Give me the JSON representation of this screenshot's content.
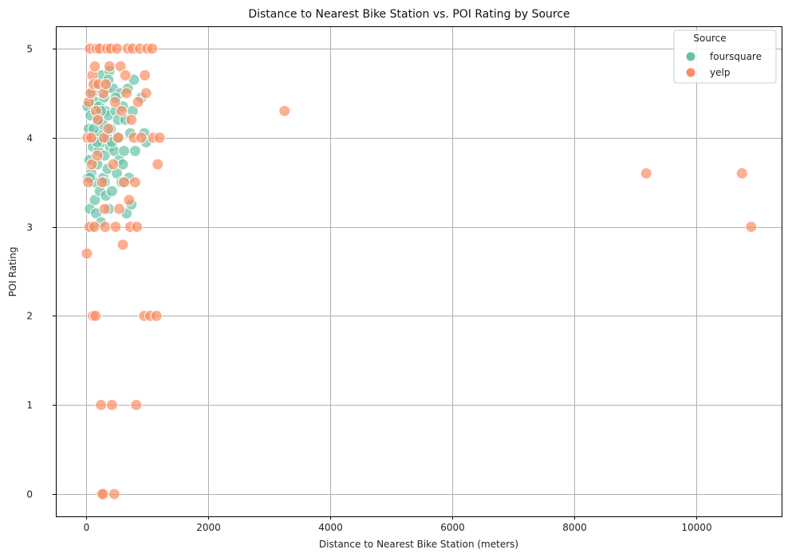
{
  "chart_data": {
    "type": "scatter",
    "title": "Distance to Nearest Bike Station vs. POI Rating by Source",
    "xlabel": "Distance to Nearest Bike Station (meters)",
    "ylabel": "POI Rating",
    "xlim": [
      -500,
      11400
    ],
    "ylim": [
      -0.25,
      5.25
    ],
    "xticks": [
      0,
      2000,
      4000,
      6000,
      8000,
      10000
    ],
    "yticks": [
      0,
      1,
      2,
      3,
      4,
      5
    ],
    "grid": true,
    "legend": {
      "title": "Source",
      "placement": "top-right"
    },
    "series": [
      {
        "name": "foursquare",
        "color": "#66c2a5",
        "points": [
          [
            20,
            4.35
          ],
          [
            30,
            3.55
          ],
          [
            40,
            4.1
          ],
          [
            50,
            3.75
          ],
          [
            60,
            3.2
          ],
          [
            70,
            4.25
          ],
          [
            80,
            3.6
          ],
          [
            90,
            3.0
          ],
          [
            100,
            4.5
          ],
          [
            110,
            3.9
          ],
          [
            120,
            4.0
          ],
          [
            130,
            3.5
          ],
          [
            140,
            3.3
          ],
          [
            150,
            4.4
          ],
          [
            160,
            3.15
          ],
          [
            170,
            4.6
          ],
          [
            180,
            3.7
          ],
          [
            190,
            4.2
          ],
          [
            200,
            3.85
          ],
          [
            210,
            4.35
          ],
          [
            220,
            3.4
          ],
          [
            230,
            4.05
          ],
          [
            240,
            3.05
          ],
          [
            250,
            4.7
          ],
          [
            260,
            3.95
          ],
          [
            270,
            4.15
          ],
          [
            280,
            3.55
          ],
          [
            290,
            4.45
          ],
          [
            300,
            3.8
          ],
          [
            310,
            4.3
          ],
          [
            320,
            3.35
          ],
          [
            330,
            4.55
          ],
          [
            340,
            4.0
          ],
          [
            350,
            3.65
          ],
          [
            360,
            4.25
          ],
          [
            370,
            3.2
          ],
          [
            380,
            4.75
          ],
          [
            390,
            3.9
          ],
          [
            400,
            4.1
          ],
          [
            420,
            3.4
          ],
          [
            440,
            4.55
          ],
          [
            460,
            3.85
          ],
          [
            480,
            4.3
          ],
          [
            500,
            3.6
          ],
          [
            520,
            4.2
          ],
          [
            540,
            3.75
          ],
          [
            560,
            4.5
          ],
          [
            580,
            3.5
          ],
          [
            600,
            4.35
          ],
          [
            620,
            3.85
          ],
          [
            640,
            4.2
          ],
          [
            660,
            3.15
          ],
          [
            680,
            4.55
          ],
          [
            700,
            3.55
          ],
          [
            720,
            4.05
          ],
          [
            740,
            3.25
          ],
          [
            760,
            4.3
          ],
          [
            780,
            4.65
          ],
          [
            800,
            3.85
          ],
          [
            900,
            4.45
          ],
          [
            950,
            4.05
          ],
          [
            980,
            3.95
          ],
          [
            60,
            3.55
          ],
          [
            120,
            4.1
          ],
          [
            180,
            3.95
          ],
          [
            240,
            4.3
          ],
          [
            300,
            3.5
          ],
          [
            360,
            4.65
          ],
          [
            420,
            3.95
          ],
          [
            480,
            4.45
          ],
          [
            540,
            4.0
          ],
          [
            600,
            3.7
          ]
        ]
      },
      {
        "name": "yelp",
        "color": "#fc8d62",
        "points": [
          [
            10,
            2.7
          ],
          [
            20,
            4.0
          ],
          [
            30,
            3.5
          ],
          [
            40,
            4.4
          ],
          [
            50,
            3.0
          ],
          [
            60,
            5.0
          ],
          [
            70,
            4.5
          ],
          [
            80,
            4.0
          ],
          [
            90,
            3.7
          ],
          [
            100,
            4.7
          ],
          [
            110,
            2.0
          ],
          [
            120,
            4.6
          ],
          [
            130,
            3.0
          ],
          [
            140,
            4.8
          ],
          [
            150,
            2.0
          ],
          [
            160,
            4.3
          ],
          [
            170,
            5.0
          ],
          [
            180,
            3.8
          ],
          [
            190,
            4.2
          ],
          [
            200,
            4.6
          ],
          [
            220,
            5.0
          ],
          [
            240,
            1.0
          ],
          [
            250,
            0.0
          ],
          [
            260,
            3.5
          ],
          [
            270,
            0.0
          ],
          [
            280,
            4.5
          ],
          [
            290,
            4.0
          ],
          [
            300,
            3.2
          ],
          [
            310,
            3.0
          ],
          [
            320,
            4.6
          ],
          [
            340,
            5.0
          ],
          [
            360,
            4.1
          ],
          [
            380,
            4.8
          ],
          [
            400,
            5.0
          ],
          [
            420,
            1.0
          ],
          [
            440,
            3.7
          ],
          [
            460,
            0.0
          ],
          [
            470,
            4.4
          ],
          [
            480,
            3.0
          ],
          [
            500,
            5.0
          ],
          [
            520,
            4.0
          ],
          [
            540,
            3.2
          ],
          [
            560,
            4.8
          ],
          [
            580,
            4.3
          ],
          [
            600,
            2.8
          ],
          [
            620,
            3.5
          ],
          [
            640,
            4.7
          ],
          [
            660,
            4.5
          ],
          [
            680,
            5.0
          ],
          [
            700,
            3.3
          ],
          [
            720,
            3.0
          ],
          [
            740,
            4.2
          ],
          [
            760,
            5.0
          ],
          [
            780,
            4.0
          ],
          [
            800,
            3.5
          ],
          [
            820,
            1.0
          ],
          [
            830,
            3.0
          ],
          [
            850,
            4.4
          ],
          [
            880,
            5.0
          ],
          [
            900,
            4.0
          ],
          [
            950,
            2.0
          ],
          [
            960,
            4.7
          ],
          [
            980,
            4.5
          ],
          [
            1000,
            5.0
          ],
          [
            1050,
            2.0
          ],
          [
            1080,
            5.0
          ],
          [
            1100,
            4.0
          ],
          [
            1150,
            2.0
          ],
          [
            1170,
            3.7
          ],
          [
            1200,
            4.0
          ],
          [
            3250,
            4.3
          ],
          [
            9180,
            3.6
          ],
          [
            10750,
            3.6
          ],
          [
            10900,
            3.0
          ]
        ]
      }
    ]
  }
}
